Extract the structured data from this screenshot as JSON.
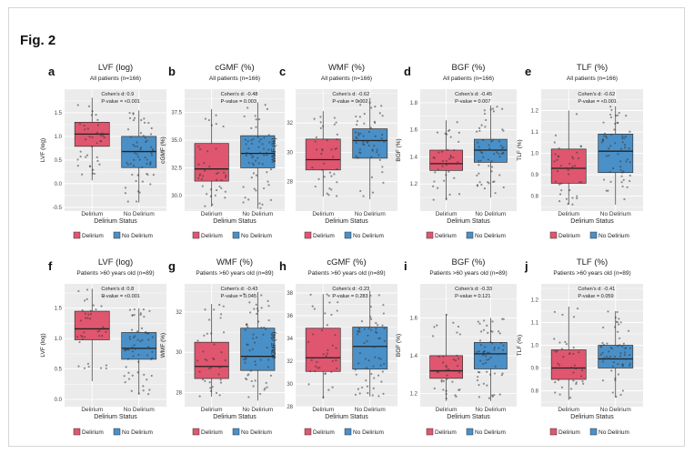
{
  "figure": {
    "label": "Fig. 2"
  },
  "colors": {
    "delirium": "#e0566f",
    "no_delirium": "#4a90c8",
    "panel_bg": "#ebebeb",
    "grid": "#ffffff",
    "point": "#3a3a3a"
  },
  "chart_data": [
    {
      "panel": "a",
      "type": "box",
      "title": "LVF (log)",
      "subtitle": "All patients (n=166)",
      "ylabel": "LVF (log)",
      "xlabel": "Delirium Status",
      "ylim": [
        -0.58,
        2.0
      ],
      "yticks": [
        -0.5,
        0.0,
        0.5,
        1.0,
        1.5
      ],
      "ytick_labels": [
        "-0.5",
        "0.0",
        "0.5",
        "1.0",
        "1.5"
      ],
      "categories": [
        "Delirium",
        "No Delirium"
      ],
      "boxes": [
        {
          "name": "Delirium",
          "q1": 0.79,
          "median": 1.05,
          "q3": 1.3,
          "whisker_low": 0.07,
          "whisker_high": 1.82
        },
        {
          "name": "No Delirium",
          "q1": 0.34,
          "median": 0.68,
          "q3": 1.0,
          "whisker_low": -0.4,
          "whisker_high": 1.55
        }
      ],
      "annotations": [
        "Cohen's d: 0.9",
        "P-value = <0.001"
      ],
      "legend": [
        "Delirium",
        "No Delirium"
      ]
    },
    {
      "panel": "b",
      "type": "box",
      "title": "cGMF (%)",
      "subtitle": "All patients (n=166)",
      "ylabel": "cGMF (%)",
      "xlabel": "Delirium Status",
      "ylim": [
        28.6,
        39.6
      ],
      "yticks": [
        30.0,
        32.5,
        35.0,
        37.5
      ],
      "ytick_labels": [
        "30.0",
        "32.5",
        "35.0",
        "37.5"
      ],
      "categories": [
        "Delirium",
        "No Delirium"
      ],
      "boxes": [
        {
          "name": "Delirium",
          "q1": 31.3,
          "median": 32.4,
          "q3": 34.7,
          "whisker_low": 29.0,
          "whisker_high": 37.8
        },
        {
          "name": "No Delirium",
          "q1": 32.5,
          "median": 33.8,
          "q3": 35.4,
          "whisker_low": 28.8,
          "whisker_high": 38.4
        }
      ],
      "annotations": [
        "Cohen's d: -0.48",
        "P-value = 0.003"
      ],
      "legend": [
        "Delirium",
        "No Delirium"
      ]
    },
    {
      "panel": "c",
      "type": "box",
      "title": "WMF (%)",
      "subtitle": "All patients (n=166)",
      "ylabel": "WMF (%)",
      "xlabel": "Delirium Status",
      "ylim": [
        26.0,
        34.3
      ],
      "yticks": [
        28,
        30,
        32
      ],
      "ytick_labels": [
        "28",
        "30",
        "32"
      ],
      "categories": [
        "Delirium",
        "No Delirium"
      ],
      "boxes": [
        {
          "name": "Delirium",
          "q1": 28.8,
          "median": 29.5,
          "q3": 30.9,
          "whisker_low": 27.0,
          "whisker_high": 32.8
        },
        {
          "name": "No Delirium",
          "q1": 29.6,
          "median": 30.8,
          "q3": 31.6,
          "whisker_low": 26.8,
          "whisker_high": 33.7
        }
      ],
      "annotations": [
        "Cohen's d: -0.62",
        "P-value = 0.002"
      ],
      "legend": [
        "Delirium",
        "No Delirium"
      ]
    },
    {
      "panel": "d",
      "type": "box",
      "title": "BGF (%)",
      "subtitle": "All patients (n=166)",
      "ylabel": "BGF (%)",
      "xlabel": "Delirium Status",
      "ylim": [
        1.0,
        1.9
      ],
      "yticks": [
        1.2,
        1.4,
        1.6,
        1.8
      ],
      "ytick_labels": [
        "1.2",
        "1.4",
        "1.6",
        "1.8"
      ],
      "categories": [
        "Delirium",
        "No Delirium"
      ],
      "boxes": [
        {
          "name": "Delirium",
          "q1": 1.3,
          "median": 1.35,
          "q3": 1.45,
          "whisker_low": 1.08,
          "whisker_high": 1.67
        },
        {
          "name": "No Delirium",
          "q1": 1.36,
          "median": 1.45,
          "q3": 1.53,
          "whisker_low": 1.1,
          "whisker_high": 1.78
        }
      ],
      "annotations": [
        "Cohen's d: -0.45",
        "P-value = 0.007"
      ],
      "legend": [
        "Delirium",
        "No Delirium"
      ]
    },
    {
      "panel": "e",
      "type": "box",
      "title": "TLF (%)",
      "subtitle": "All patients (n=166)",
      "ylabel": "TLF (%)",
      "xlabel": "Delirium Status",
      "ylim": [
        0.73,
        1.3
      ],
      "yticks": [
        0.8,
        0.9,
        1.0,
        1.1,
        1.2
      ],
      "ytick_labels": [
        "0.8",
        "0.9",
        "1.0",
        "1.1",
        "1.2"
      ],
      "categories": [
        "Delirium",
        "No Delirium"
      ],
      "boxes": [
        {
          "name": "Delirium",
          "q1": 0.86,
          "median": 0.93,
          "q3": 1.02,
          "whisker_low": 0.76,
          "whisker_high": 1.2
        },
        {
          "name": "No Delirium",
          "q1": 0.91,
          "median": 1.01,
          "q3": 1.09,
          "whisker_low": 0.76,
          "whisker_high": 1.22
        }
      ],
      "annotations": [
        "Cohen's d: -0.62",
        "P-value = <0.001"
      ],
      "legend": [
        "Delirium",
        "No Delirium"
      ]
    },
    {
      "panel": "f",
      "type": "box",
      "title": "LVF (log)",
      "subtitle": "Patients >60 years old (n=89)",
      "ylabel": "LVF (log)",
      "xlabel": "Delirium Status",
      "ylim": [
        -0.12,
        1.9
      ],
      "yticks": [
        0.0,
        0.5,
        1.0,
        1.5
      ],
      "ytick_labels": [
        "0.0",
        "0.5",
        "1.0",
        "1.5"
      ],
      "categories": [
        "Delirium",
        "No Delirium"
      ],
      "boxes": [
        {
          "name": "Delirium",
          "q1": 0.98,
          "median": 1.16,
          "q3": 1.45,
          "whisker_low": 0.3,
          "whisker_high": 1.82
        },
        {
          "name": "No Delirium",
          "q1": 0.66,
          "median": 0.84,
          "q3": 1.1,
          "whisker_low": 0.08,
          "whisker_high": 1.5
        }
      ],
      "annotations": [
        "Cohen's d: 0.8",
        "P-value = <0.001"
      ],
      "legend": [
        "Delirium",
        "No Delirium"
      ]
    },
    {
      "panel": "g",
      "type": "box",
      "title": "WMF (%)",
      "subtitle": "Patients >60 years old (n=89)",
      "ylabel": "WMF (%)",
      "xlabel": "Delirium Status",
      "ylim": [
        27.3,
        33.4
      ],
      "yticks": [
        28,
        30,
        32
      ],
      "ytick_labels": [
        "28",
        "30",
        "32"
      ],
      "categories": [
        "Delirium",
        "No Delirium"
      ],
      "boxes": [
        {
          "name": "Delirium",
          "q1": 28.7,
          "median": 29.3,
          "q3": 30.5,
          "whisker_low": 27.8,
          "whisker_high": 32.4
        },
        {
          "name": "No Delirium",
          "q1": 29.1,
          "median": 29.8,
          "q3": 31.2,
          "whisker_low": 27.6,
          "whisker_high": 33.0
        }
      ],
      "annotations": [
        "Cohen's d: -0.43",
        "P-value = 0.045"
      ],
      "legend": [
        "Delirium",
        "No Delirium"
      ]
    },
    {
      "panel": "h",
      "type": "box",
      "title": "cGMF (%)",
      "subtitle": "Patients >60 years old (n=89)",
      "ylabel": "cGMF (%)",
      "xlabel": "Delirium Status",
      "ylim": [
        28.0,
        38.8
      ],
      "yticks": [
        28,
        30,
        32,
        34,
        36,
        38
      ],
      "ytick_labels": [
        "28",
        "30",
        "32",
        "34",
        "36",
        "38"
      ],
      "categories": [
        "Delirium",
        "No Delirium"
      ],
      "boxes": [
        {
          "name": "Delirium",
          "q1": 31.1,
          "median": 32.3,
          "q3": 34.9,
          "whisker_low": 28.7,
          "whisker_high": 37.9
        },
        {
          "name": "No Delirium",
          "q1": 31.3,
          "median": 33.3,
          "q3": 35.0,
          "whisker_low": 28.9,
          "whisker_high": 38.2
        }
      ],
      "annotations": [
        "Cohen's d: -0.23",
        "P-value = 0.283"
      ],
      "legend": [
        "Delirium",
        "No Delirium"
      ]
    },
    {
      "panel": "i",
      "type": "box",
      "title": "BGF (%)",
      "subtitle": "Patients >60 years old (n=89)",
      "ylabel": "BGF (%)",
      "xlabel": "Delirium Status",
      "ylim": [
        1.13,
        1.78
      ],
      "yticks": [
        1.2,
        1.4,
        1.6
      ],
      "ytick_labels": [
        "1.2",
        "1.4",
        "1.6"
      ],
      "categories": [
        "Delirium",
        "No Delirium"
      ],
      "boxes": [
        {
          "name": "Delirium",
          "q1": 1.28,
          "median": 1.32,
          "q3": 1.4,
          "whisker_low": 1.16,
          "whisker_high": 1.62
        },
        {
          "name": "No Delirium",
          "q1": 1.33,
          "median": 1.41,
          "q3": 1.47,
          "whisker_low": 1.16,
          "whisker_high": 1.6
        }
      ],
      "annotations": [
        "Cohen's d: -0.33",
        "P-value = 0.121"
      ],
      "legend": [
        "Delirium",
        "No Delirium"
      ]
    },
    {
      "panel": "j",
      "type": "box",
      "title": "TLF (%)",
      "subtitle": "Patients >60 years old (n=89)",
      "ylabel": "TLF (%)",
      "xlabel": "Delirium Status",
      "ylim": [
        0.73,
        1.27
      ],
      "yticks": [
        0.8,
        0.9,
        1.0,
        1.1,
        1.2
      ],
      "ytick_labels": [
        "0.8",
        "0.9",
        "1.0",
        "1.1",
        "1.2"
      ],
      "categories": [
        "Delirium",
        "No Delirium"
      ],
      "boxes": [
        {
          "name": "Delirium",
          "q1": 0.85,
          "median": 0.9,
          "q3": 0.98,
          "whisker_low": 0.76,
          "whisker_high": 1.17
        },
        {
          "name": "No Delirium",
          "q1": 0.9,
          "median": 0.94,
          "q3": 1.0,
          "whisker_low": 0.77,
          "whisker_high": 1.15
        }
      ],
      "annotations": [
        "Cohen's d: -0.41",
        "P-value = 0.059"
      ],
      "legend": [
        "Delirium",
        "No Delirium"
      ]
    }
  ]
}
